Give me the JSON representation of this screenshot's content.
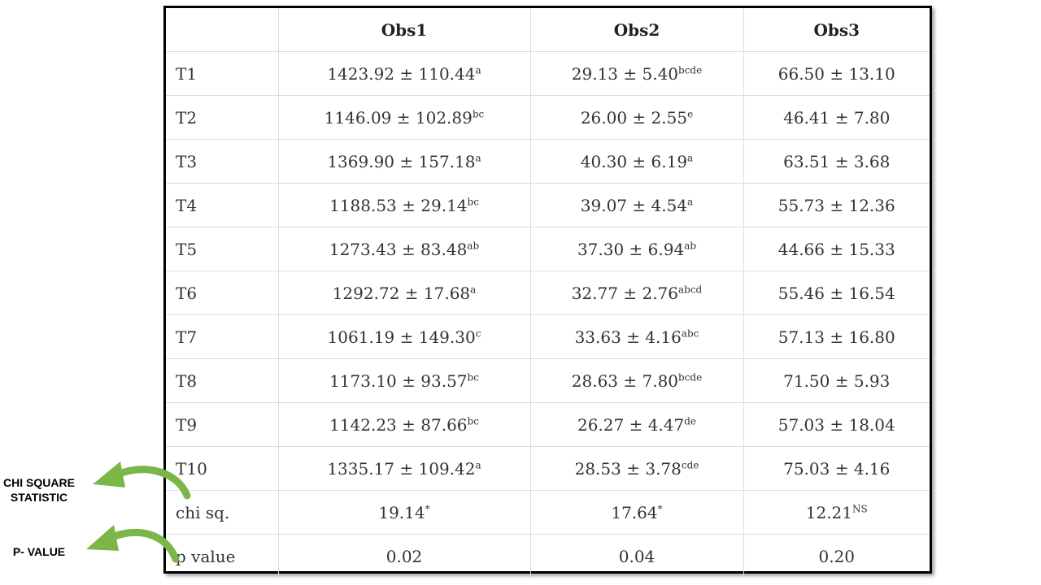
{
  "table": {
    "headers": [
      "",
      "Obs1",
      "Obs2",
      "Obs3"
    ],
    "rows": [
      {
        "label": "T1",
        "cells": [
          {
            "v": "1423.92 ± 110.44",
            "s": "a"
          },
          {
            "v": "29.13 ± 5.40",
            "s": "bcde"
          },
          {
            "v": "66.50 ± 13.10",
            "s": ""
          }
        ]
      },
      {
        "label": "T2",
        "cells": [
          {
            "v": "1146.09 ± 102.89",
            "s": "bc"
          },
          {
            "v": "26.00 ± 2.55",
            "s": "e"
          },
          {
            "v": "46.41 ± 7.80",
            "s": ""
          }
        ]
      },
      {
        "label": "T3",
        "cells": [
          {
            "v": "1369.90 ± 157.18",
            "s": "a"
          },
          {
            "v": "40.30 ± 6.19",
            "s": "a"
          },
          {
            "v": "63.51 ± 3.68",
            "s": ""
          }
        ]
      },
      {
        "label": "T4",
        "cells": [
          {
            "v": "1188.53 ± 29.14",
            "s": "bc"
          },
          {
            "v": "39.07 ± 4.54",
            "s": "a"
          },
          {
            "v": "55.73 ± 12.36",
            "s": ""
          }
        ]
      },
      {
        "label": "T5",
        "cells": [
          {
            "v": "1273.43 ± 83.48",
            "s": "ab"
          },
          {
            "v": "37.30 ± 6.94",
            "s": "ab"
          },
          {
            "v": "44.66 ± 15.33",
            "s": ""
          }
        ]
      },
      {
        "label": "T6",
        "cells": [
          {
            "v": "1292.72 ± 17.68",
            "s": "a"
          },
          {
            "v": "32.77 ± 2.76",
            "s": "abcd"
          },
          {
            "v": "55.46 ± 16.54",
            "s": ""
          }
        ]
      },
      {
        "label": "T7",
        "cells": [
          {
            "v": "1061.19 ± 149.30",
            "s": "c"
          },
          {
            "v": "33.63 ± 4.16",
            "s": "abc"
          },
          {
            "v": "57.13 ± 16.80",
            "s": ""
          }
        ]
      },
      {
        "label": "T8",
        "cells": [
          {
            "v": "1173.10 ± 93.57",
            "s": "bc"
          },
          {
            "v": "28.63 ± 7.80",
            "s": "bcde"
          },
          {
            "v": "71.50 ± 5.93",
            "s": ""
          }
        ]
      },
      {
        "label": "T9",
        "cells": [
          {
            "v": "1142.23 ± 87.66",
            "s": "bc"
          },
          {
            "v": "26.27 ± 4.47",
            "s": "de"
          },
          {
            "v": "57.03 ± 18.04",
            "s": ""
          }
        ]
      },
      {
        "label": "T10",
        "cells": [
          {
            "v": "1335.17 ± 109.42",
            "s": "a"
          },
          {
            "v": "28.53 ± 3.78",
            "s": "cde"
          },
          {
            "v": "75.03 ± 4.16",
            "s": ""
          }
        ]
      },
      {
        "label": "chi sq.",
        "cells": [
          {
            "v": "19.14",
            "s": "*"
          },
          {
            "v": "17.64",
            "s": "*"
          },
          {
            "v": "12.21",
            "s": "NS"
          }
        ]
      },
      {
        "label": "p value",
        "cells": [
          {
            "v": "0.02",
            "s": ""
          },
          {
            "v": "0.04",
            "s": ""
          },
          {
            "v": "0.20",
            "s": ""
          }
        ]
      }
    ]
  },
  "annotations": {
    "chi_square_line1": "CHI SQUARE",
    "chi_square_line2": "STATISTIC",
    "p_value": "P- VALUE",
    "arrow_color": "#7ab648"
  }
}
